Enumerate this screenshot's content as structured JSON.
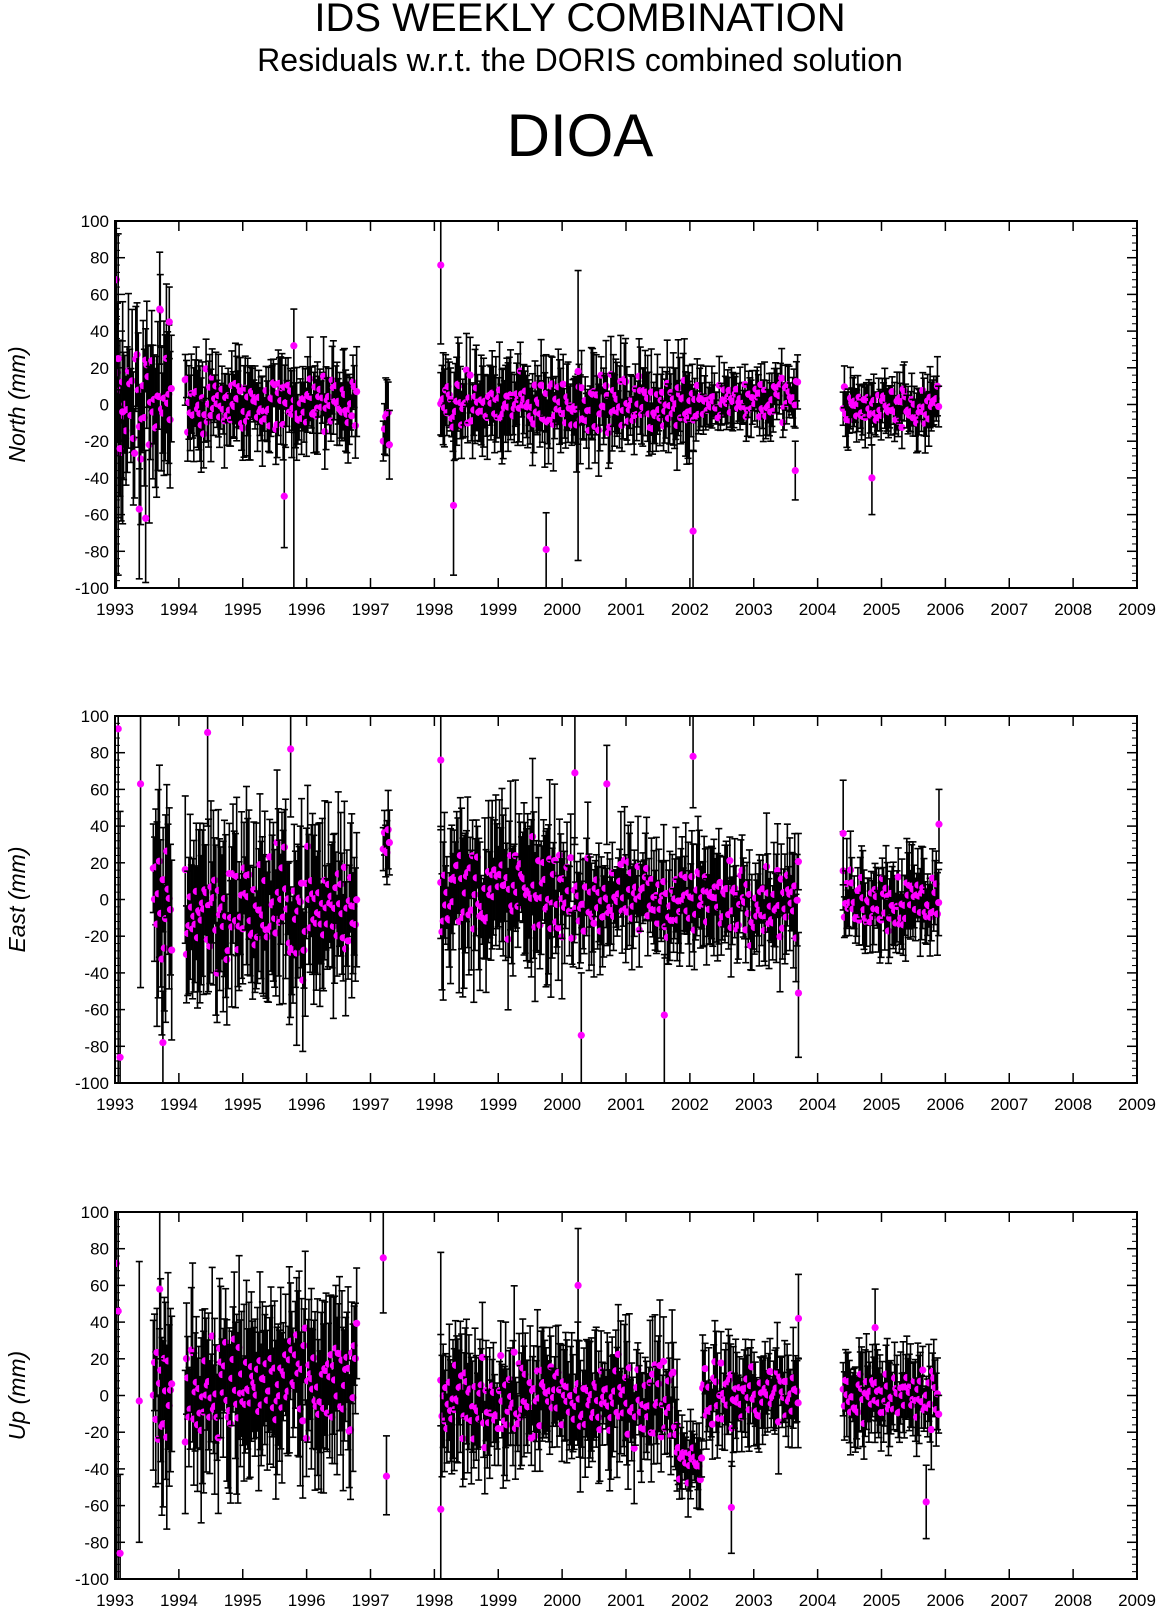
{
  "header": {
    "title": "IDS WEEKLY COMBINATION",
    "subtitle": "Residuals w.r.t. the DORIS combined solution",
    "station": "DIOA"
  },
  "colors": {
    "marker": "#ff00ff",
    "errorbar": "#000000",
    "frame": "#000000"
  },
  "chart_data": [
    {
      "type": "scatter",
      "ylabel": "North (mm)",
      "ylim": [
        -100,
        100
      ],
      "xlim": [
        1993,
        2009
      ],
      "yticks": [
        "100",
        "80",
        "60",
        "40",
        "20",
        "0",
        "-20",
        "-40",
        "-60",
        "-80",
        "-100"
      ],
      "xticks": [
        "1993",
        "1994",
        "1995",
        "1996",
        "1997",
        "1998",
        "1999",
        "2000",
        "2001",
        "2002",
        "2003",
        "2004",
        "2005",
        "2006",
        "2007",
        "2008",
        "2009"
      ],
      "grid": false,
      "segments": [
        {
          "x0": 1993.0,
          "x1": 1993.9,
          "center": 5,
          "spread": 30,
          "err": 30
        },
        {
          "x0": 1994.1,
          "x1": 1996.8,
          "center": 0,
          "spread": 12,
          "err": 18
        },
        {
          "x0": 1997.2,
          "x1": 1997.3,
          "center": -10,
          "spread": 12,
          "err": 15
        },
        {
          "x0": 1998.1,
          "x1": 2002.0,
          "center": 0,
          "spread": 12,
          "err": 18
        },
        {
          "x0": 2002.0,
          "x1": 2003.7,
          "center": 3,
          "spread": 10,
          "err": 12
        },
        {
          "x0": 2004.4,
          "x1": 2005.9,
          "center": -2,
          "spread": 9,
          "err": 12
        }
      ],
      "points": [
        {
          "x": 1993.02,
          "y": 68,
          "lo": -100,
          "hi": 100
        },
        {
          "x": 1993.05,
          "y": 25,
          "lo": -93,
          "hi": 93
        },
        {
          "x": 1993.08,
          "y": -24,
          "lo": -50,
          "hi": 8
        },
        {
          "x": 1993.12,
          "y": -4,
          "lo": -65,
          "hi": 56
        },
        {
          "x": 1993.38,
          "y": -57,
          "lo": -95,
          "hi": -18
        },
        {
          "x": 1993.48,
          "y": -62,
          "lo": -97,
          "hi": -25
        },
        {
          "x": 1993.7,
          "y": 52,
          "lo": 22,
          "hi": 83
        },
        {
          "x": 1993.85,
          "y": 45,
          "lo": 25,
          "hi": 64
        },
        {
          "x": 1995.65,
          "y": -50,
          "lo": -78,
          "hi": -22
        },
        {
          "x": 1995.8,
          "y": 32,
          "lo": -100,
          "hi": 52
        },
        {
          "x": 1998.1,
          "y": 76,
          "lo": 33,
          "hi": 100
        },
        {
          "x": 1998.3,
          "y": -55,
          "lo": -93,
          "hi": -20
        },
        {
          "x": 1999.75,
          "y": -79,
          "lo": -100,
          "hi": -59
        },
        {
          "x": 2000.25,
          "y": 18,
          "lo": -85,
          "hi": 73
        },
        {
          "x": 2002.05,
          "y": -69,
          "lo": -100,
          "hi": -25
        },
        {
          "x": 2003.65,
          "y": -36,
          "lo": -52,
          "hi": -20
        },
        {
          "x": 2004.85,
          "y": -40,
          "lo": -60,
          "hi": -22
        }
      ]
    },
    {
      "type": "scatter",
      "ylabel": "East (mm)",
      "ylim": [
        -100,
        100
      ],
      "xlim": [
        1993,
        2009
      ],
      "yticks": [
        "100",
        "80",
        "60",
        "40",
        "20",
        "0",
        "-20",
        "-40",
        "-60",
        "-80",
        "-100"
      ],
      "xticks": [
        "1993",
        "1994",
        "1995",
        "1996",
        "1997",
        "1998",
        "1999",
        "2000",
        "2001",
        "2002",
        "2003",
        "2004",
        "2005",
        "2006",
        "2007",
        "2008",
        "2009"
      ],
      "grid": false,
      "segments": [
        {
          "x0": 1993.6,
          "x1": 1993.9,
          "center": 0,
          "spread": 35,
          "err": 40
        },
        {
          "x0": 1994.1,
          "x1": 1996.8,
          "center": -5,
          "spread": 25,
          "err": 35
        },
        {
          "x0": 1997.2,
          "x1": 1997.3,
          "center": 32,
          "spread": 8,
          "err": 20
        },
        {
          "x0": 1998.1,
          "x1": 2000.0,
          "center": 5,
          "spread": 20,
          "err": 30
        },
        {
          "x0": 2000.0,
          "x1": 2003.7,
          "center": 0,
          "spread": 16,
          "err": 22
        },
        {
          "x0": 2004.4,
          "x1": 2005.9,
          "center": 0,
          "spread": 14,
          "err": 18
        }
      ],
      "points": [
        {
          "x": 1993.05,
          "y": 93,
          "lo": -100,
          "hi": 100
        },
        {
          "x": 1993.08,
          "y": -86,
          "lo": -100,
          "hi": 48
        },
        {
          "x": 1993.4,
          "y": 63,
          "lo": -48,
          "hi": 100
        },
        {
          "x": 1993.75,
          "y": -78,
          "lo": -100,
          "hi": -50
        },
        {
          "x": 1994.45,
          "y": 91,
          "lo": 40,
          "hi": 100
        },
        {
          "x": 1995.75,
          "y": 82,
          "lo": 45,
          "hi": 100
        },
        {
          "x": 1998.1,
          "y": 76,
          "lo": 38,
          "hi": 100
        },
        {
          "x": 2000.2,
          "y": 69,
          "lo": 30,
          "hi": 100
        },
        {
          "x": 2000.7,
          "y": 63,
          "lo": 30,
          "hi": 84
        },
        {
          "x": 2002.05,
          "y": 78,
          "lo": 50,
          "hi": 100
        },
        {
          "x": 2001.6,
          "y": -63,
          "lo": -100,
          "hi": -30
        },
        {
          "x": 2000.3,
          "y": -74,
          "lo": -100,
          "hi": -40
        },
        {
          "x": 2003.7,
          "y": -51,
          "lo": -86,
          "hi": -18
        },
        {
          "x": 2004.4,
          "y": 36,
          "lo": 8,
          "hi": 65
        },
        {
          "x": 2005.9,
          "y": 41,
          "lo": 20,
          "hi": 60
        }
      ]
    },
    {
      "type": "scatter",
      "ylabel": "Up (mm)",
      "ylim": [
        -100,
        100
      ],
      "xlim": [
        1993,
        2009
      ],
      "yticks": [
        "100",
        "80",
        "60",
        "40",
        "20",
        "0",
        "-20",
        "-40",
        "-60",
        "-80",
        "-100"
      ],
      "xticks": [
        "1993",
        "1994",
        "1995",
        "1996",
        "1997",
        "1998",
        "1999",
        "2000",
        "2001",
        "2002",
        "2003",
        "2004",
        "2005",
        "2006",
        "2007",
        "2008",
        "2009"
      ],
      "grid": false,
      "segments": [
        {
          "x0": 1993.6,
          "x1": 1993.9,
          "center": 0,
          "spread": 25,
          "err": 35
        },
        {
          "x0": 1994.1,
          "x1": 1996.8,
          "center": 5,
          "spread": 22,
          "err": 35
        },
        {
          "x0": 1998.1,
          "x1": 2001.8,
          "center": -3,
          "spread": 18,
          "err": 25
        },
        {
          "x0": 2001.8,
          "x1": 2002.2,
          "center": -35,
          "spread": 10,
          "err": 18
        },
        {
          "x0": 2002.2,
          "x1": 2003.7,
          "center": 0,
          "spread": 14,
          "err": 20
        },
        {
          "x0": 2004.4,
          "x1": 2005.9,
          "center": 0,
          "spread": 12,
          "err": 18
        }
      ],
      "points": [
        {
          "x": 1993.02,
          "y": 72,
          "lo": -100,
          "hi": 100
        },
        {
          "x": 1993.05,
          "y": 46,
          "lo": -100,
          "hi": 100
        },
        {
          "x": 1993.08,
          "y": -86,
          "lo": -100,
          "hi": -43
        },
        {
          "x": 1993.38,
          "y": -3,
          "lo": -80,
          "hi": 73
        },
        {
          "x": 1993.7,
          "y": 58,
          "lo": 20,
          "hi": 100
        },
        {
          "x": 1997.2,
          "y": 75,
          "lo": 45,
          "hi": 100
        },
        {
          "x": 1997.25,
          "y": -44,
          "lo": -65,
          "hi": -22
        },
        {
          "x": 1998.1,
          "y": -62,
          "lo": -100,
          "hi": 78
        },
        {
          "x": 2000.25,
          "y": 60,
          "lo": 30,
          "hi": 91
        },
        {
          "x": 2002.65,
          "y": -61,
          "lo": -86,
          "hi": -36
        },
        {
          "x": 2003.7,
          "y": 42,
          "lo": 20,
          "hi": 66
        },
        {
          "x": 2004.9,
          "y": 37,
          "lo": 15,
          "hi": 58
        },
        {
          "x": 2005.7,
          "y": -58,
          "lo": -78,
          "hi": -38
        }
      ]
    }
  ]
}
